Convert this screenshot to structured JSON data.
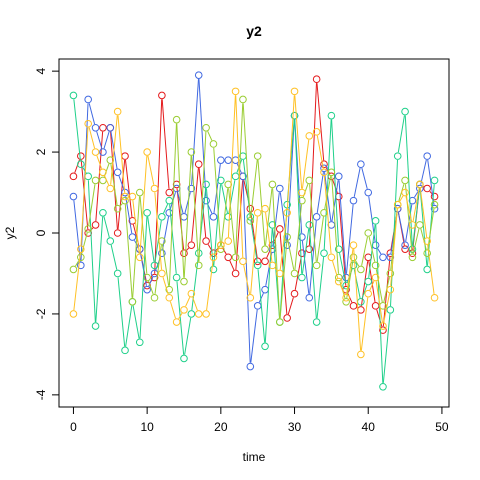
{
  "chart_data": {
    "type": "line",
    "title": "y2",
    "xlabel": "time",
    "ylabel": "y2",
    "xlim": [
      -1.96,
      50.96
    ],
    "ylim": [
      -4.3,
      4.3
    ],
    "xticks": [
      0,
      10,
      20,
      30,
      40,
      50
    ],
    "yticks": [
      -4,
      -2,
      0,
      2,
      4
    ],
    "grid": false,
    "legend": "none",
    "markers": "open-circle",
    "x": [
      0,
      1,
      2,
      3,
      4,
      5,
      6,
      7,
      8,
      9,
      10,
      11,
      12,
      13,
      14,
      15,
      16,
      17,
      18,
      19,
      20,
      21,
      22,
      23,
      24,
      25,
      26,
      27,
      28,
      29,
      30,
      31,
      32,
      33,
      34,
      35,
      36,
      37,
      38,
      39,
      40,
      41,
      42,
      43,
      44,
      45,
      46,
      47,
      48,
      49
    ],
    "series": [
      {
        "color": "#E41A1C",
        "values": [
          1.4,
          1.9,
          0.0,
          0.2,
          2.6,
          2.6,
          0.0,
          1.9,
          0.3,
          -0.4,
          -1.3,
          -1.1,
          3.4,
          1.0,
          1.2,
          -0.5,
          -0.3,
          1.7,
          -0.2,
          -0.5,
          -0.3,
          -0.6,
          -1.0,
          1.4,
          0.6,
          -0.7,
          -0.7,
          -0.3,
          0.1,
          -2.1,
          -1.5,
          -0.5,
          -0.4,
          3.8,
          1.7,
          1.4,
          0.9,
          -1.4,
          -1.8,
          -1.9,
          -0.6,
          -1.8,
          -2.4,
          -0.5,
          0.6,
          -0.4,
          -0.5,
          1.2,
          1.1,
          0.9
        ]
      },
      {
        "color": "#4169E1",
        "values": [
          0.9,
          -0.8,
          3.3,
          2.6,
          2.0,
          2.6,
          1.5,
          1.0,
          -0.1,
          -0.4,
          -1.4,
          -1.0,
          -0.5,
          0.5,
          1.1,
          0.4,
          1.1,
          3.9,
          0.8,
          0.4,
          1.8,
          1.8,
          1.8,
          1.4,
          -3.3,
          -1.8,
          -1.4,
          -0.4,
          1.1,
          -0.3,
          2.9,
          -0.1,
          -1.6,
          0.4,
          1.6,
          0.2,
          1.4,
          -1.1,
          0.8,
          1.7,
          1.0,
          -0.3,
          -0.6,
          -0.6,
          0.6,
          -0.3,
          0.8,
          1.1,
          1.9,
          0.6
        ]
      },
      {
        "color": "#1FD08A",
        "values": [
          3.4,
          1.7,
          1.4,
          -2.3,
          0.5,
          -0.2,
          -1.0,
          -2.9,
          -1.7,
          -2.7,
          0.5,
          -0.8,
          0.4,
          0.8,
          -1.1,
          -3.1,
          -2.0,
          -0.5,
          1.2,
          -0.9,
          1.3,
          0.4,
          1.4,
          1.9,
          0.4,
          -0.8,
          -2.8,
          0.2,
          -2.2,
          0.7,
          2.9,
          -1.1,
          0.2,
          -2.2,
          -0.5,
          2.9,
          -0.4,
          -1.3,
          -0.8,
          -1.7,
          -1.2,
          0.3,
          -3.8,
          -1.9,
          1.9,
          3.0,
          -0.4,
          1.2,
          -0.9,
          1.3
        ]
      },
      {
        "color": "#9ACD32",
        "values": [
          -0.9,
          -0.6,
          0.1,
          1.3,
          1.3,
          1.8,
          0.6,
          0.8,
          -1.7,
          1.0,
          -1.1,
          -1.6,
          -0.2,
          -1.4,
          2.8,
          -1.2,
          2.0,
          -0.8,
          2.6,
          2.2,
          -0.4,
          1.2,
          -0.6,
          3.3,
          0.3,
          1.9,
          -0.4,
          1.2,
          -2.2,
          -0.1,
          -1.0,
          0.8,
          1.3,
          -0.8,
          0.5,
          1.5,
          -1.1,
          -1.7,
          -0.6,
          -0.9,
          0.0,
          -0.8,
          -1.8,
          -1.0,
          0.7,
          1.3,
          -0.6,
          0.2,
          -0.5,
          0.7
        ]
      },
      {
        "color": "#FFC125",
        "values": [
          -2.0,
          -0.4,
          2.7,
          2.0,
          1.5,
          1.1,
          3.0,
          0.9,
          0.9,
          -0.6,
          2.0,
          1.1,
          -1.0,
          -1.6,
          -2.2,
          -1.9,
          -1.5,
          -2.0,
          -2.0,
          -0.6,
          -0.3,
          -0.2,
          3.5,
          -0.7,
          -1.6,
          0.5,
          0.6,
          -0.8,
          -1.0,
          0.5,
          3.5,
          1.0,
          2.4,
          2.5,
          1.5,
          -0.6,
          -1.2,
          -1.6,
          -0.3,
          -3.0,
          -1.5,
          -1.1,
          -2.3,
          -1.4,
          0.7,
          1.0,
          0.2,
          1.2,
          -0.2,
          -1.6
        ]
      }
    ]
  }
}
